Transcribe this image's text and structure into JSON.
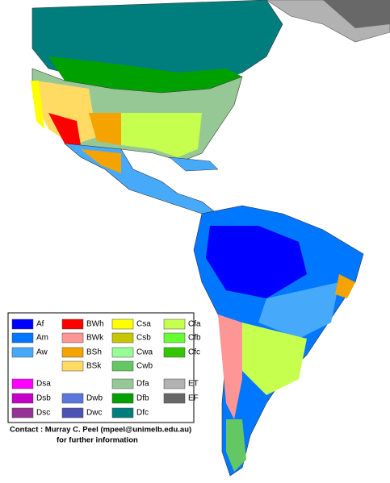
{
  "legend": {
    "items": [
      {
        "label": "Af",
        "color": "#0000fe"
      },
      {
        "label": "Am",
        "color": "#0077ff"
      },
      {
        "label": "Aw",
        "color": "#46a9fa"
      },
      {
        "label": "BWh",
        "color": "#fe0000"
      },
      {
        "label": "BWk",
        "color": "#fe9695"
      },
      {
        "label": "BSh",
        "color": "#f5a301"
      },
      {
        "label": "BSk",
        "color": "#ffdb63"
      },
      {
        "label": "Csa",
        "color": "#ffff00"
      },
      {
        "label": "Csb",
        "color": "#c6c700"
      },
      {
        "label": "Cwa",
        "color": "#96ff96"
      },
      {
        "label": "Cwb",
        "color": "#63c764"
      },
      {
        "label": "Cfa",
        "color": "#c6ff4e"
      },
      {
        "label": "Cfb",
        "color": "#66ff33"
      },
      {
        "label": "Cfc",
        "color": "#33c701"
      },
      {
        "label": "Dsa",
        "color": "#ff00fe"
      },
      {
        "label": "Dsb",
        "color": "#c600c7"
      },
      {
        "label": "Dsc",
        "color": "#963295"
      },
      {
        "label": "Dwb",
        "color": "#5a77db"
      },
      {
        "label": "Dwc",
        "color": "#4c51b5"
      },
      {
        "label": "Dfa",
        "color": "#96c896"
      },
      {
        "label": "Dfb",
        "color": "#00a000"
      },
      {
        "label": "Dfc",
        "color": "#007e7d"
      },
      {
        "label": "ET",
        "color": "#b2b2b2"
      },
      {
        "label": "EF",
        "color": "#686868"
      }
    ]
  },
  "contact": {
    "line1": "Contact : Murray C. Peel (mpeel@unimelb.edu.au)",
    "line2": "for further information"
  }
}
